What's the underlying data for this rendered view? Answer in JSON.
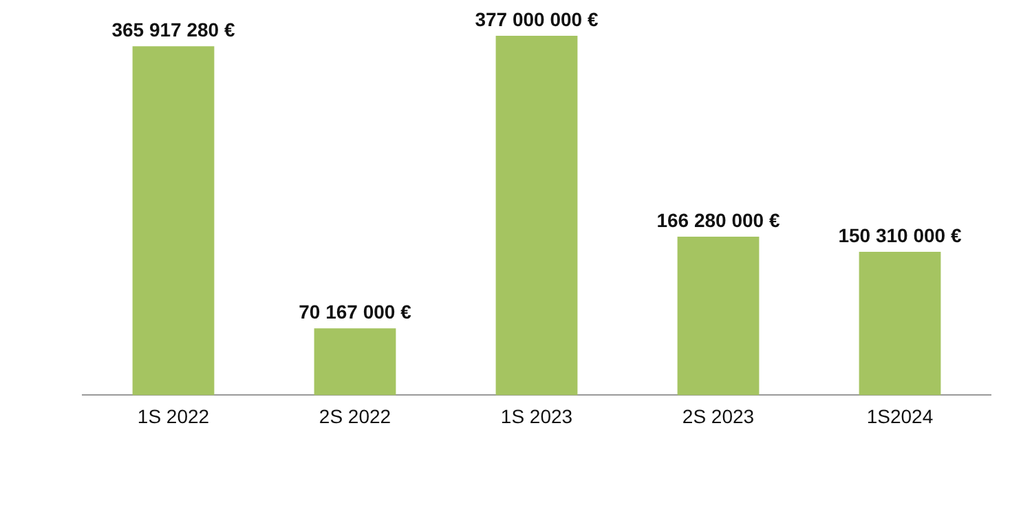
{
  "chart_data": {
    "type": "bar",
    "categories": [
      "1S 2022",
      "2S 2022",
      "1S 2023",
      "2S 2023",
      "1S2024"
    ],
    "values": [
      365917280,
      70167000,
      377000000,
      166280000,
      150310000
    ],
    "value_labels": [
      "365 917 280 €",
      "70 167 000 €",
      "377 000 000 €",
      "166 280 000 €",
      "150 310 000 €"
    ],
    "color": "#a5c461",
    "grid": false,
    "legend": false
  }
}
